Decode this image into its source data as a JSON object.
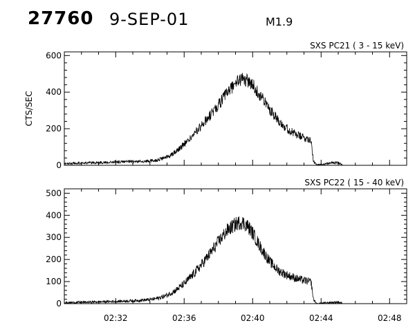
{
  "header": {
    "event_id": "27760",
    "date": "9-SEP-01",
    "flare_class": "M1.9"
  },
  "chart_data": [
    {
      "type": "line",
      "title": "SXS PC21  (  3 - 15 keV)",
      "ylabel": "CTS/SEC",
      "xlabel": "",
      "xlim": [
        "02:29",
        "02:49"
      ],
      "ylim": [
        0,
        620
      ],
      "yticks": [
        "0",
        "200",
        "400",
        "600"
      ],
      "xticks": [
        "02:32",
        "02:36",
        "02:40",
        "02:44",
        "02:48"
      ],
      "x_tick_labels_shown": false,
      "series": [
        {
          "x": [
            "02:29:00",
            "02:30:00",
            "02:31:00",
            "02:32:00",
            "02:33:00",
            "02:34:00",
            "02:34:30",
            "02:35:00",
            "02:35:30",
            "02:36:00",
            "02:36:30",
            "02:37:00",
            "02:37:30",
            "02:38:00",
            "02:38:30",
            "02:39:00",
            "02:39:20",
            "02:39:40",
            "02:40:00",
            "02:40:30",
            "02:41:00",
            "02:41:30",
            "02:42:00",
            "02:42:30",
            "02:43:00",
            "02:43:25",
            "02:43:33",
            "02:43:45",
            "02:44:00",
            "02:44:30",
            "02:45:00",
            "02:45:15"
          ],
          "values": [
            10,
            12,
            15,
            18,
            20,
            22,
            30,
            45,
            75,
            115,
            160,
            215,
            270,
            330,
            395,
            450,
            470,
            465,
            440,
            375,
            305,
            250,
            200,
            170,
            150,
            140,
            20,
            2,
            5,
            12,
            15,
            5
          ]
        }
      ]
    },
    {
      "type": "line",
      "title": "SXS PC22  ( 15 - 40 keV)",
      "ylabel": "",
      "xlabel": "",
      "xlim": [
        "02:29",
        "02:49"
      ],
      "ylim": [
        0,
        520
      ],
      "yticks": [
        "0",
        "100",
        "200",
        "300",
        "400",
        "500"
      ],
      "xticks": [
        "02:32",
        "02:36",
        "02:40",
        "02:44",
        "02:48"
      ],
      "x_tick_labels_shown": true,
      "series": [
        {
          "x": [
            "02:29:00",
            "02:30:00",
            "02:31:00",
            "02:32:00",
            "02:33:00",
            "02:34:00",
            "02:34:30",
            "02:35:00",
            "02:35:30",
            "02:36:00",
            "02:36:30",
            "02:37:00",
            "02:37:30",
            "02:38:00",
            "02:38:30",
            "02:39:00",
            "02:39:20",
            "02:39:40",
            "02:40:00",
            "02:40:30",
            "02:41:00",
            "02:41:30",
            "02:42:00",
            "02:42:30",
            "02:43:00",
            "02:43:25",
            "02:43:33",
            "02:43:45",
            "02:44:00",
            "02:44:30",
            "02:45:00",
            "02:45:15"
          ],
          "values": [
            4,
            6,
            8,
            10,
            13,
            18,
            25,
            38,
            60,
            90,
            130,
            175,
            225,
            280,
            330,
            360,
            370,
            355,
            320,
            250,
            190,
            150,
            130,
            115,
            105,
            98,
            20,
            0,
            2,
            5,
            6,
            2
          ]
        }
      ]
    }
  ]
}
